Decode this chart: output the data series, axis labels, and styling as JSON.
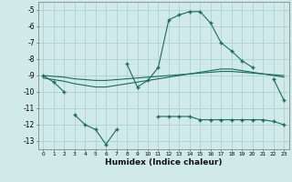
{
  "xlabel": "Humidex (Indice chaleur)",
  "background_color": "#d0eaea",
  "grid_color": "#a8cccc",
  "line_color": "#1a6b5a",
  "x_values": [
    0,
    1,
    2,
    3,
    4,
    5,
    6,
    7,
    8,
    9,
    10,
    11,
    12,
    13,
    14,
    15,
    16,
    17,
    18,
    19,
    20,
    21,
    22,
    23
  ],
  "line1_y": [
    -9.0,
    -9.4,
    -10.0,
    null,
    null,
    null,
    null,
    null,
    -8.3,
    -9.7,
    -9.3,
    -8.5,
    -5.6,
    -5.3,
    -5.1,
    -5.1,
    -5.8,
    -7.0,
    -7.5,
    -8.1,
    -8.5,
    null,
    -9.2,
    -10.5
  ],
  "line2_y": [
    -9.0,
    -9.05,
    -9.1,
    -9.2,
    -9.25,
    -9.3,
    -9.3,
    -9.25,
    -9.2,
    -9.15,
    -9.1,
    -9.05,
    -9.0,
    -8.95,
    -8.9,
    -8.85,
    -8.8,
    -8.75,
    -8.75,
    -8.8,
    -8.85,
    -8.9,
    -8.95,
    -9.0
  ],
  "line3_y": [
    -9.15,
    -9.25,
    -9.35,
    -9.5,
    -9.6,
    -9.7,
    -9.7,
    -9.6,
    -9.5,
    -9.4,
    -9.3,
    -9.2,
    -9.1,
    -9.0,
    -8.9,
    -8.8,
    -8.7,
    -8.6,
    -8.6,
    -8.7,
    -8.8,
    -8.9,
    -9.0,
    -9.1
  ],
  "line4_y": [
    null,
    null,
    null,
    -11.4,
    -12.0,
    -12.3,
    -13.2,
    -12.3,
    null,
    null,
    null,
    -11.5,
    -11.5,
    -11.5,
    -11.5,
    -11.7,
    -11.7,
    -11.7,
    -11.7,
    -11.7,
    -11.7,
    -11.7,
    -11.8,
    -12.0
  ],
  "ylim": [
    -13.5,
    -4.5
  ],
  "xlim": [
    -0.5,
    23.5
  ],
  "yticks": [
    -5,
    -6,
    -7,
    -8,
    -9,
    -10,
    -11,
    -12,
    -13
  ],
  "xticks": [
    0,
    1,
    2,
    3,
    4,
    5,
    6,
    7,
    8,
    9,
    10,
    11,
    12,
    13,
    14,
    15,
    16,
    17,
    18,
    19,
    20,
    21,
    22,
    23
  ]
}
